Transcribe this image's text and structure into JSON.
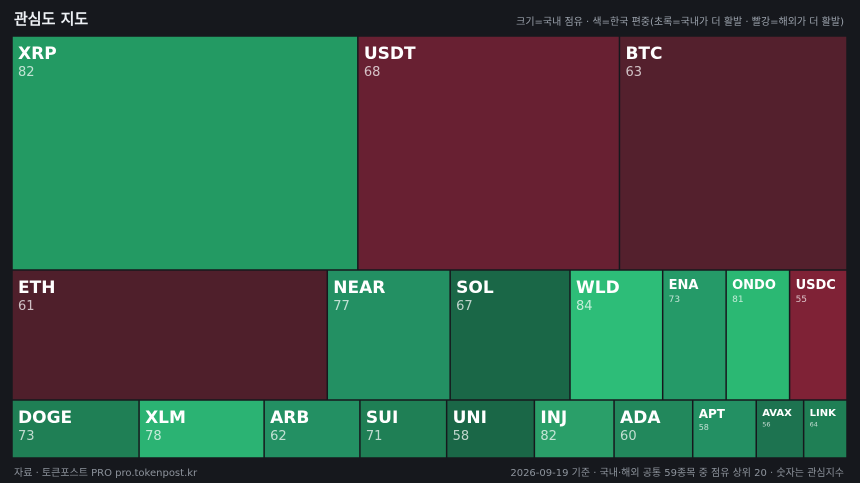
{
  "header": {
    "title": "관심도 지도",
    "legend_note": "크기=국내 점유 · 색=한국 편중(초록=국내가 더 활발 · 빨강=해외가 더 활발)"
  },
  "footer": {
    "source": "자료 · 토큰포스트 PRO  pro.tokenpost.kr",
    "note": "2026-09-19 기준 · 국내·해외 공통 59종목 중 점유 상위 20 · 숫자는 관심지수"
  },
  "colors": {
    "background": "#16181d",
    "green_dark": "#1a6747",
    "green_mid": "#239063",
    "green_bright": "#2dbd78",
    "red_dark": "#4f1f2c",
    "red_mid": "#6a2233",
    "red_bright": "#7f2236"
  },
  "chart_data": {
    "type": "treemap",
    "title": "관심도 지도",
    "size_meaning": "국내 점유",
    "color_meaning": "한국 편중 (초록=국내가 더 활발, 빨강=해외가 더 활발)",
    "value_meaning": "관심지수",
    "rows": [
      {
        "items": [
          {
            "name": "XRP",
            "value": 82,
            "weight": 345,
            "color": "#239a63"
          },
          {
            "name": "USDT",
            "value": 68,
            "weight": 261,
            "color": "#682032"
          },
          {
            "name": "BTC",
            "value": 63,
            "weight": 227,
            "color": "#54202d"
          }
        ]
      },
      {
        "items": [
          {
            "name": "ETH",
            "value": 61,
            "weight": 313,
            "color": "#4f1f2b"
          },
          {
            "name": "NEAR",
            "value": 77,
            "weight": 122,
            "color": "#239063"
          },
          {
            "name": "SOL",
            "value": 67,
            "weight": 119,
            "color": "#1a6747"
          },
          {
            "name": "WLD",
            "value": 84,
            "weight": 92,
            "color": "#2dbd78"
          },
          {
            "name": "ENA",
            "value": 73,
            "weight": 63,
            "color": "#259a68"
          },
          {
            "name": "ONDO",
            "value": 81,
            "weight": 63,
            "color": "#2bb873"
          },
          {
            "name": "USDC",
            "value": 55,
            "weight": 57,
            "color": "#7f2236"
          }
        ]
      },
      {
        "items": [
          {
            "name": "DOGE",
            "value": 73,
            "weight": 126,
            "color": "#1f7f55"
          },
          {
            "name": "XLM",
            "value": 78,
            "weight": 124,
            "color": "#2bb373"
          },
          {
            "name": "ARB",
            "value": 62,
            "weight": 95,
            "color": "#239063"
          },
          {
            "name": "SUI",
            "value": 71,
            "weight": 86,
            "color": "#1f7f55"
          },
          {
            "name": "UNI",
            "value": 58,
            "weight": 87,
            "color": "#1a6747"
          },
          {
            "name": "INJ",
            "value": 82,
            "weight": 79,
            "color": "#2a9f69"
          },
          {
            "name": "ADA",
            "value": 60,
            "weight": 78,
            "color": "#22885c"
          },
          {
            "name": "APT",
            "value": 58,
            "weight": 63,
            "color": "#239063"
          },
          {
            "name": "AVAX",
            "value": 56,
            "weight": 47,
            "color": "#1d7350"
          },
          {
            "name": "LINK",
            "value": 64,
            "weight": 43,
            "color": "#1f7f55"
          }
        ]
      }
    ]
  }
}
